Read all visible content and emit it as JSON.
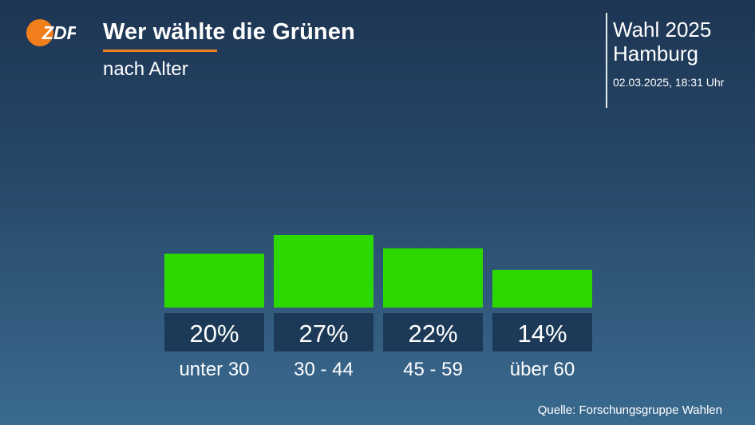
{
  "header": {
    "logo_text": "ZDF",
    "title": "Wer wählte die Grünen",
    "subtitle": "nach Alter"
  },
  "info": {
    "election": "Wahl 2025",
    "region": "Hamburg",
    "timestamp": "02.03.2025, 18:31 Uhr"
  },
  "source": "Quelle: Forschungsgruppe Wahlen",
  "colors": {
    "bar": "#2bd800",
    "label_box": "#1c3a57",
    "accent": "#f07e1a",
    "logo": "#f07e1a"
  },
  "chart_data": {
    "type": "bar",
    "categories": [
      "unter 30",
      "30 - 44",
      "45 - 59",
      "über 60"
    ],
    "values": [
      20,
      27,
      22,
      14
    ],
    "value_labels": [
      "20%",
      "27%",
      "22%",
      "14%"
    ],
    "title": "Wer wählte die Grünen",
    "subtitle": "nach Alter",
    "xlabel": "",
    "ylabel": "",
    "ylim": [
      0,
      27
    ],
    "grid": false,
    "legend": "none"
  }
}
